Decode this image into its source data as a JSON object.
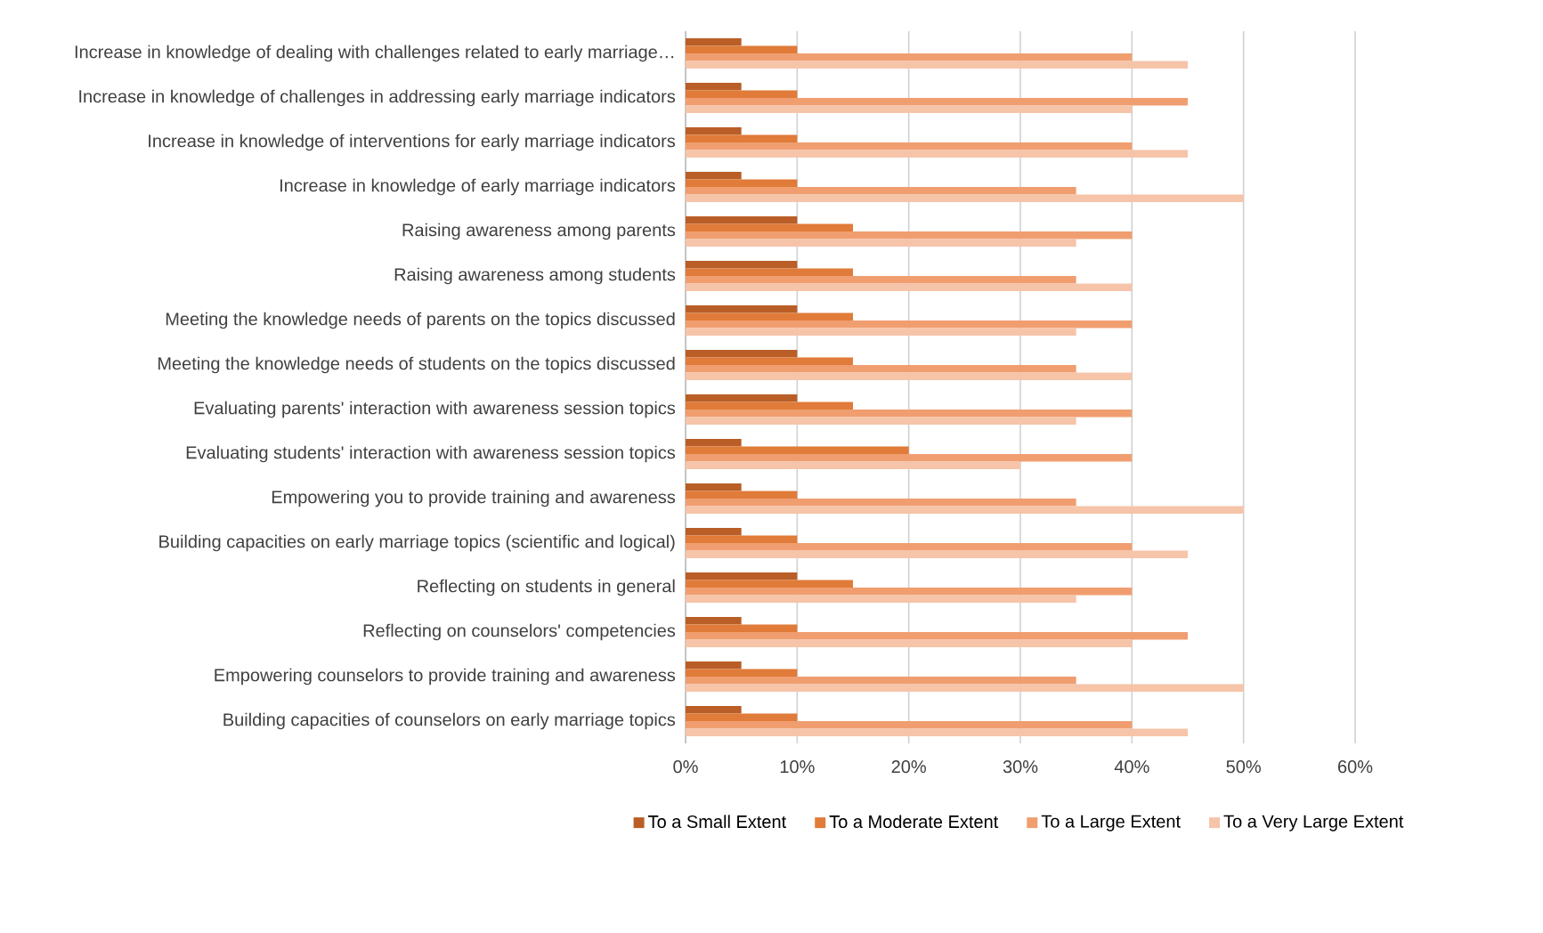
{
  "chart_data": {
    "type": "bar",
    "orientation": "horizontal",
    "categories": [
      "Increase in knowledge of dealing with challenges related to early marriage…",
      "Increase in knowledge of challenges in addressing early marriage indicators",
      "Increase in knowledge of interventions for early marriage indicators",
      "Increase in knowledge of early marriage indicators",
      "Raising awareness among parents",
      "Raising awareness among students",
      "Meeting the knowledge needs of parents on the topics discussed",
      "Meeting the knowledge needs of students on the topics discussed",
      "Evaluating parents' interaction with awareness session topics",
      "Evaluating students' interaction with awareness session topics",
      "Empowering you to provide training and awareness",
      "Building capacities on early marriage topics (scientific and logical)",
      "Reflecting on students in general",
      "Reflecting on counselors' competencies",
      "Empowering counselors to provide training and awareness",
      "Building capacities of counselors on early marriage topics"
    ],
    "series": [
      {
        "name": "To a Small Extent",
        "color": "#b95e27",
        "values": [
          5,
          5,
          5,
          5,
          10,
          10,
          10,
          10,
          10,
          5,
          5,
          5,
          10,
          5,
          5,
          5
        ]
      },
      {
        "name": "To a Moderate Extent",
        "color": "#e07b39",
        "values": [
          10,
          10,
          10,
          10,
          15,
          15,
          15,
          15,
          15,
          20,
          10,
          10,
          15,
          10,
          10,
          10
        ]
      },
      {
        "name": "To a Large Extent",
        "color": "#f09e70",
        "values": [
          40,
          45,
          40,
          35,
          40,
          35,
          40,
          35,
          40,
          40,
          35,
          40,
          40,
          45,
          35,
          40
        ]
      },
      {
        "name": "To a Very Large Extent",
        "color": "#f6c4a9",
        "values": [
          45,
          40,
          45,
          50,
          35,
          40,
          35,
          40,
          35,
          30,
          50,
          45,
          35,
          40,
          50,
          45
        ]
      }
    ],
    "xlim": [
      0,
      60
    ],
    "xticks": [
      {
        "value": 0,
        "label": "0%"
      },
      {
        "value": 10,
        "label": "10%"
      },
      {
        "value": 20,
        "label": "20%"
      },
      {
        "value": 30,
        "label": "30%"
      },
      {
        "value": 40,
        "label": "40%"
      },
      {
        "value": 50,
        "label": "50%"
      },
      {
        "value": 60,
        "label": "60%"
      }
    ],
    "grid": "x",
    "legend": "bottom"
  }
}
